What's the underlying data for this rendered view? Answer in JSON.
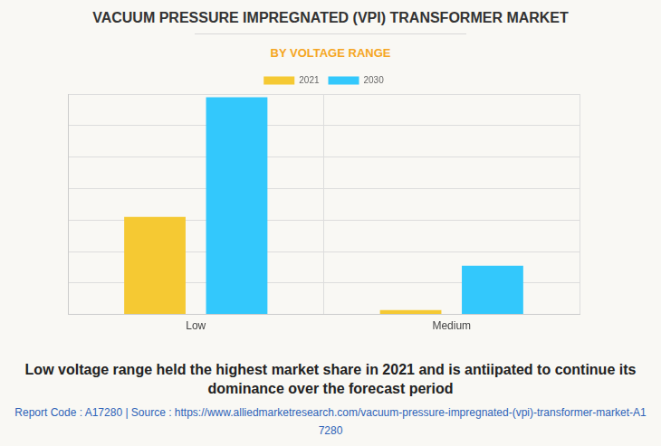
{
  "chart_data": {
    "type": "bar",
    "title": "VACUUM PRESSURE IMPREGNATED (VPI) TRANSFORMER MARKET",
    "subtitle": "BY VOLTAGE RANGE",
    "categories": [
      "Low",
      "Medium"
    ],
    "series": [
      {
        "name": "2021",
        "color": "#f5c933",
        "values": [
          3.1,
          0.14
        ]
      },
      {
        "name": "2030",
        "color": "#33c8fc",
        "values": [
          6.9,
          1.55
        ]
      }
    ],
    "ylim": [
      0,
      7
    ],
    "yticks": [
      0,
      1,
      2,
      3,
      4,
      5,
      6,
      7
    ],
    "grid": true,
    "legend": "top",
    "tick_labels": "x",
    "caption": "Low voltage range held the highest market share in 2021 and is antiipated to continue its dominance over the forecast period",
    "source": "Report Code : A17280  |  Source : https://www.alliedmarketresearch.com/vacuum-pressure-impregnated-(vpi)-transformer-market-A17280"
  }
}
